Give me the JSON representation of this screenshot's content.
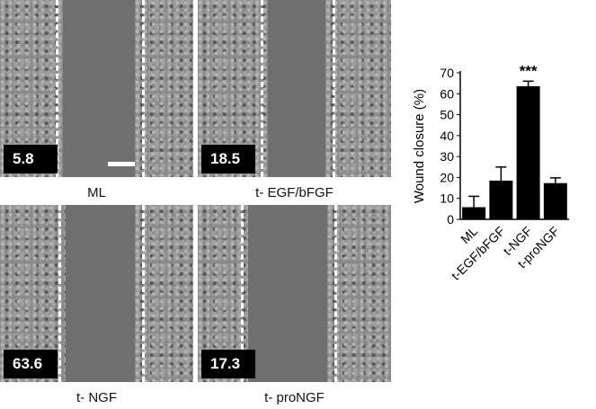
{
  "panels": [
    {
      "label": "ML",
      "value": "5.8",
      "scale_bar": true
    },
    {
      "label": "t- EGF/bFGF",
      "value": "18.5"
    },
    {
      "label": "t- NGF",
      "value": "63.6"
    },
    {
      "label": "t- proNGF",
      "value": "17.3"
    }
  ],
  "chart_data": {
    "type": "bar",
    "ylabel": "Wound closure (%)",
    "ylim": [
      0,
      70
    ],
    "yticks": [
      0,
      10,
      20,
      30,
      40,
      50,
      60,
      70
    ],
    "categories": [
      "ML",
      "t-EGF/bFGF",
      "t-NGF",
      "t-proNGF"
    ],
    "values": [
      5.8,
      18.5,
      63.6,
      17.3
    ],
    "error_upper": [
      11,
      25,
      66,
      19.8
    ],
    "annotations": [
      {
        "category": "t-NGF",
        "text": "***"
      }
    ],
    "bar_color": "#000000"
  }
}
